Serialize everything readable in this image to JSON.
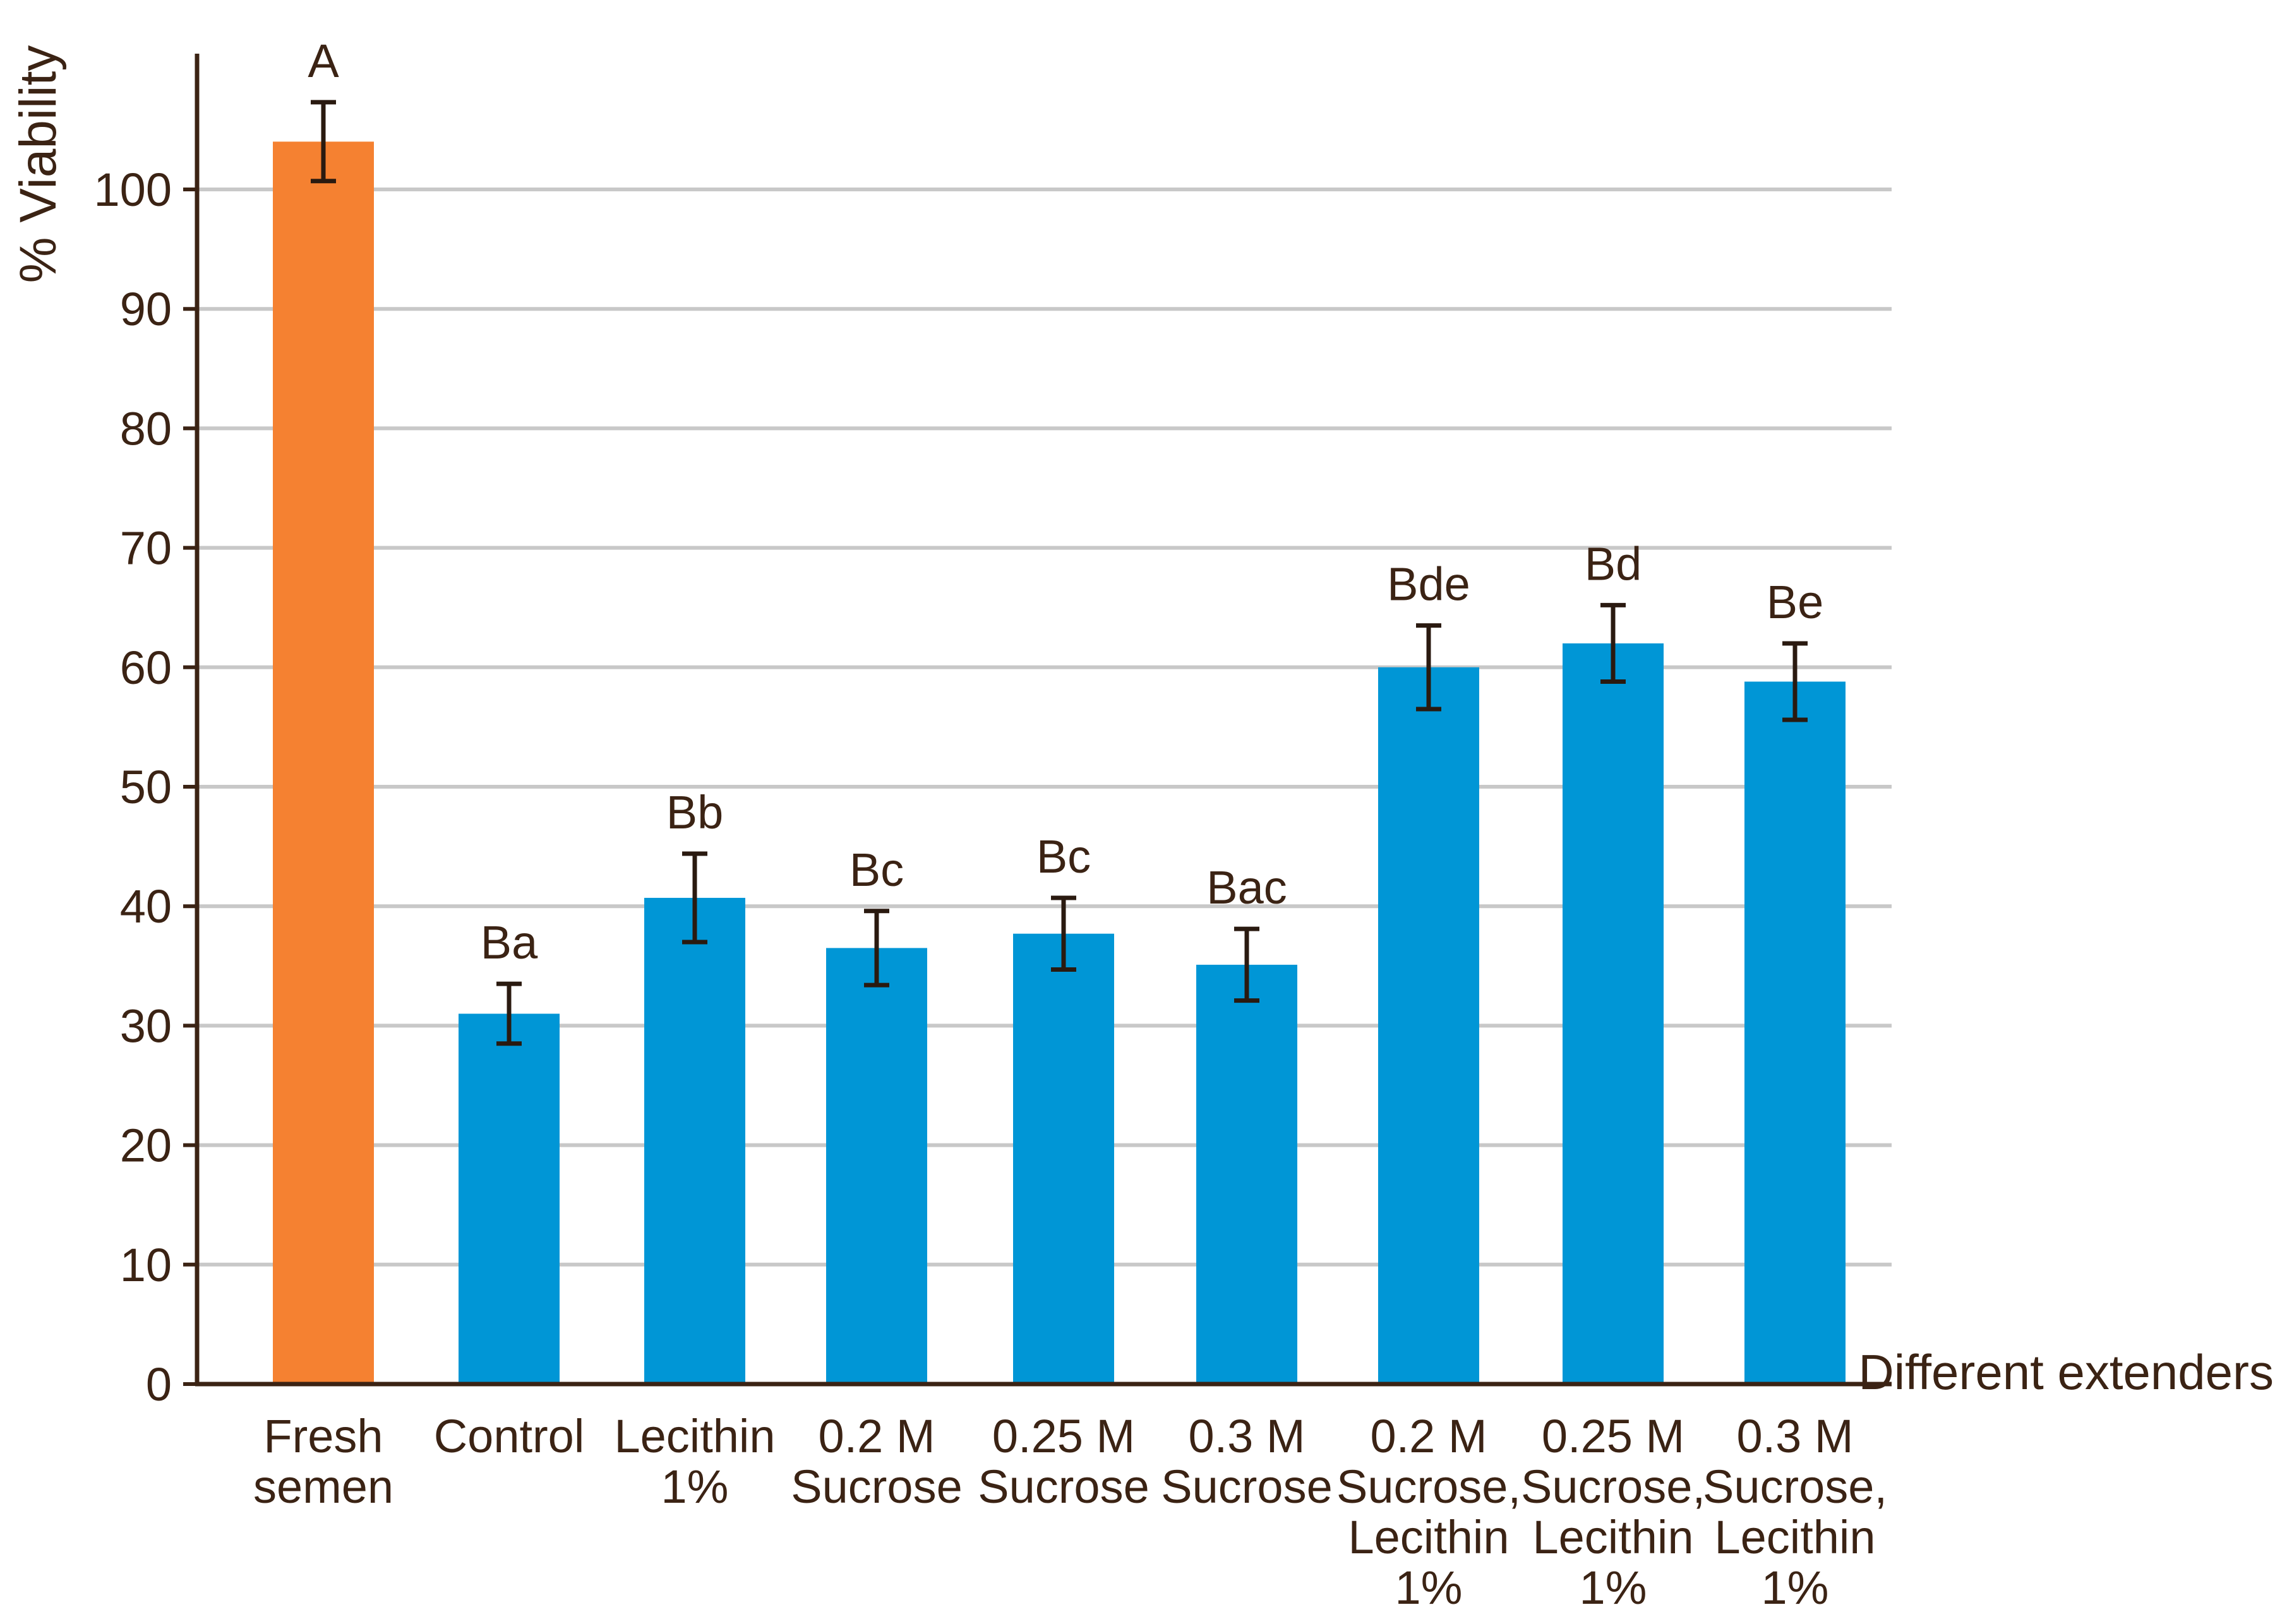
{
  "chart_data": {
    "type": "bar",
    "title": "",
    "xlabel": "Different extenders",
    "ylabel": "% Viability",
    "ylim": [
      0,
      110
    ],
    "yticks": [
      "0",
      "10",
      "20",
      "30",
      "40",
      "50",
      "60",
      "70",
      "80",
      "90",
      "100"
    ],
    "grid": true,
    "categories": [
      [
        "Fresh",
        "semen"
      ],
      [
        "Control"
      ],
      [
        "Lecithin",
        "1%"
      ],
      [
        "0.2 M",
        "Sucrose"
      ],
      [
        "0.25 M",
        "Sucrose"
      ],
      [
        "0.3 M",
        "Sucrose"
      ],
      [
        "0.2 M",
        "Sucrose,",
        "Lecithin",
        "1%"
      ],
      [
        "0.25 M",
        "Sucrose,",
        "Lecithin",
        "1%"
      ],
      [
        "0.3 M",
        "Sucrose,",
        "Lecithin",
        "1%"
      ]
    ],
    "values": [
      104,
      31,
      40.7,
      36.5,
      37.7,
      35.1,
      60,
      62,
      58.8
    ],
    "errors": [
      3.3,
      2.5,
      3.7,
      3.1,
      3,
      3,
      3.5,
      3.2,
      3.2
    ],
    "significance_labels": [
      "A",
      "Ba",
      "Bb",
      "Bc",
      "Bc",
      "Bac",
      "Bde",
      "Bd",
      "Be"
    ],
    "colors": [
      "#f58131",
      "#0096d6",
      "#0096d6",
      "#0096d6",
      "#0096d6",
      "#0096d6",
      "#0096d6",
      "#0096d6",
      "#0096d6"
    ],
    "axis_color": "#3b2314",
    "grid_color": "#c8c8c8",
    "error_bar_color": "#2a1a10"
  }
}
